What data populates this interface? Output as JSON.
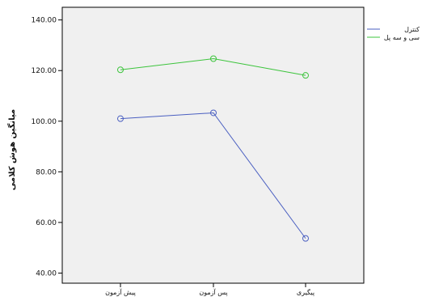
{
  "chart_data": {
    "type": "line",
    "title": "",
    "xlabel": "",
    "ylabel": "میانگین هوش کلامی",
    "categories": [
      "پیش آزمون",
      "پس آزمون",
      "پیگیری"
    ],
    "ylim": [
      36,
      145
    ],
    "yticks": [
      40,
      60,
      80,
      100,
      120,
      140
    ],
    "ytick_labels": [
      "40.00",
      "60.00",
      "80.00",
      "100.00",
      "120.00",
      "140.00"
    ],
    "grid": false,
    "legend_position": "right",
    "series": [
      {
        "name": "کنترل",
        "color": "#4a5fc1",
        "values": [
          101,
          103.3,
          53.7
        ]
      },
      {
        "name": "سی و سه پل",
        "color": "#3cc43c",
        "values": [
          120.3,
          124.7,
          118.1
        ]
      }
    ],
    "colors": {
      "plot_background": "#f0f0f0",
      "axis": "#000000"
    }
  }
}
